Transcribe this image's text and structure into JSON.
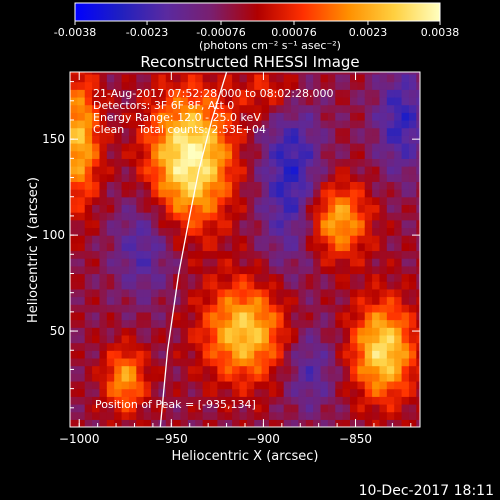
{
  "colorbar": {
    "tick_labels": [
      "-0.0038",
      "-0.0023",
      "-0.00076",
      "0.00076",
      "0.0023",
      "0.0038"
    ],
    "unit_label": "(photons cm⁻² s⁻¹ asec⁻²)",
    "colors": [
      "#0000ff",
      "#2020c0",
      "#5a2aa0",
      "#7a1f6e",
      "#b00000",
      "#ff3000",
      "#ff9000",
      "#ffd040",
      "#ffffc0"
    ]
  },
  "footer_date": "10-Dec-2017 18:11",
  "chart_data": {
    "type": "heatmap",
    "title": "Reconstructed RHESSI Image",
    "xlabel": "Heliocentric X (arcsec)",
    "ylabel": "Heliocentric Y (arcsec)",
    "xlim": [
      -1005,
      -815
    ],
    "ylim": [
      0,
      185
    ],
    "x_ticks": [
      -1000,
      -950,
      -900,
      -850
    ],
    "x_tick_labels": [
      "−1000",
      "−950",
      "−900",
      "−850"
    ],
    "y_ticks": [
      50,
      100,
      150
    ],
    "y_tick_labels": [
      "50",
      "100",
      "150"
    ],
    "color_range": [
      -0.0038,
      0.0038
    ],
    "annotations": [
      "21-Aug-2017 07:52:28.000 to 08:02:28.000",
      "Detectors: 3F 6F 8F, Att 0",
      "Energy Range: 12.0 - 25.0 keV",
      "Clean    Total counts: 2.53E+04"
    ],
    "peak_label": "Position of Peak = [-935,134]",
    "limb_curve": [
      [
        -956,
        0
      ],
      [
        -952,
        40
      ],
      [
        -946,
        80
      ],
      [
        -940,
        110
      ],
      [
        -935,
        134
      ],
      [
        -928,
        160
      ],
      [
        -920,
        185
      ]
    ],
    "sources": [
      {
        "x": -940,
        "y": 140,
        "sx": 16,
        "sy": 24,
        "amp": 0.0042
      },
      {
        "x": -1000,
        "y": 150,
        "sx": 8,
        "sy": 24,
        "amp": 0.003
      },
      {
        "x": -910,
        "y": 50,
        "sx": 16,
        "sy": 18,
        "amp": 0.0033
      },
      {
        "x": -860,
        "y": 108,
        "sx": 12,
        "sy": 14,
        "amp": 0.0029
      },
      {
        "x": -835,
        "y": 40,
        "sx": 12,
        "sy": 18,
        "amp": 0.0036
      },
      {
        "x": -975,
        "y": 25,
        "sx": 8,
        "sy": 12,
        "amp": 0.0026
      },
      {
        "x": -895,
        "y": 175,
        "sx": 12,
        "sy": 10,
        "amp": 0.0015
      }
    ],
    "negative_bands": [
      {
        "x": -885,
        "y": 130,
        "sx": 12,
        "sy": 32,
        "amp": -0.0022
      },
      {
        "x": -965,
        "y": 95,
        "sx": 12,
        "sy": 20,
        "amp": -0.0016
      },
      {
        "x": -825,
        "y": 160,
        "sx": 10,
        "sy": 20,
        "amp": -0.002
      },
      {
        "x": -875,
        "y": 30,
        "sx": 10,
        "sy": 16,
        "amp": -0.0015
      }
    ]
  }
}
